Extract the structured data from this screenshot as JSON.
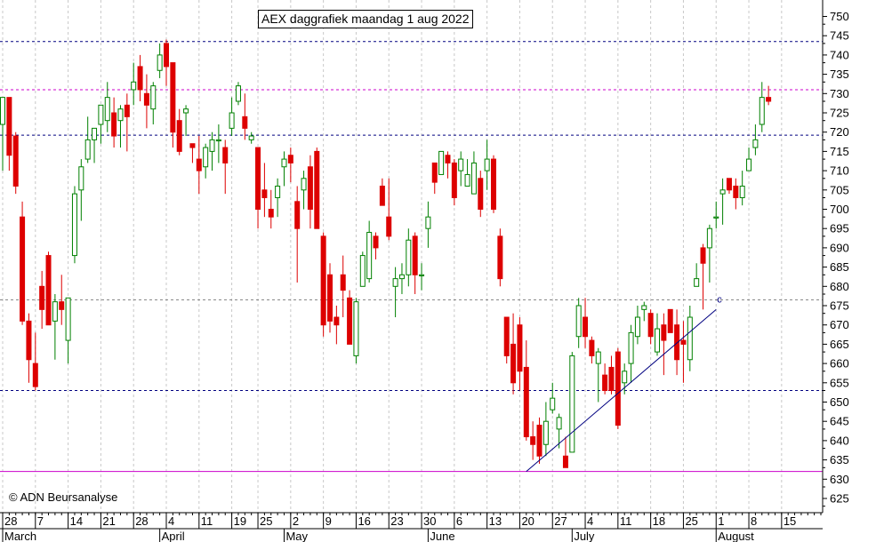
{
  "chart_data": {
    "type": "candlestick",
    "title": "AEX daggrafiek maandag 1 aug 2022",
    "copyright": "© ADN Beursanalyse",
    "y_ticks": [
      625,
      630,
      635,
      640,
      645,
      650,
      655,
      660,
      665,
      670,
      675,
      680,
      685,
      690,
      695,
      700,
      705,
      710,
      715,
      720,
      725,
      730,
      735,
      740,
      745,
      750
    ],
    "ylim": [
      621,
      754
    ],
    "day_ticks": [
      {
        "label": "28",
        "day": 0
      },
      {
        "label": "7",
        "day": 5
      },
      {
        "label": "14",
        "day": 10
      },
      {
        "label": "21",
        "day": 15
      },
      {
        "label": "28",
        "day": 20
      },
      {
        "label": "4",
        "day": 25
      },
      {
        "label": "11",
        "day": 30
      },
      {
        "label": "19",
        "day": 35
      },
      {
        "label": "25",
        "day": 39
      },
      {
        "label": "2",
        "day": 44
      },
      {
        "label": "9",
        "day": 49
      },
      {
        "label": "16",
        "day": 54
      },
      {
        "label": "23",
        "day": 59
      },
      {
        "label": "30",
        "day": 64
      },
      {
        "label": "6",
        "day": 69
      },
      {
        "label": "13",
        "day": 74
      },
      {
        "label": "20",
        "day": 79
      },
      {
        "label": "27",
        "day": 84
      },
      {
        "label": "4",
        "day": 89
      },
      {
        "label": "11",
        "day": 94
      },
      {
        "label": "18",
        "day": 99
      },
      {
        "label": "25",
        "day": 104
      },
      {
        "label": "1",
        "day": 109
      },
      {
        "label": "8",
        "day": 114
      },
      {
        "label": "15",
        "day": 119
      }
    ],
    "months": [
      {
        "label": "March",
        "day": 0
      },
      {
        "label": "April",
        "day": 24
      },
      {
        "label": "May",
        "day": 43
      },
      {
        "label": "June",
        "day": 65
      },
      {
        "label": "July",
        "day": 87
      },
      {
        "label": "August",
        "day": 109
      }
    ],
    "candles": [
      [
        722,
        729,
        710,
        729
      ],
      [
        729,
        714,
        721,
        710
      ],
      [
        719,
        706,
        720,
        704
      ],
      [
        698,
        671,
        702,
        670
      ],
      [
        671,
        661,
        673,
        655
      ],
      [
        660,
        654,
        668,
        653
      ],
      [
        680,
        674,
        684,
        669
      ],
      [
        688,
        670,
        689,
        670
      ],
      [
        671,
        676,
        678,
        661
      ],
      [
        676,
        674,
        683,
        670
      ],
      [
        666,
        677,
        677,
        660
      ],
      [
        688,
        704,
        706,
        686
      ],
      [
        705,
        711,
        713,
        697
      ],
      [
        713,
        718,
        724,
        712
      ],
      [
        718,
        721,
        721,
        712
      ],
      [
        722,
        727,
        727,
        717
      ],
      [
        723,
        729,
        733,
        720
      ],
      [
        725,
        719,
        729,
        716
      ],
      [
        723,
        726,
        727,
        716
      ],
      [
        727,
        724,
        730,
        715
      ],
      [
        731,
        733,
        738,
        727
      ],
      [
        737,
        731,
        740,
        728
      ],
      [
        730,
        727,
        735,
        721
      ],
      [
        726,
        732,
        733,
        722
      ],
      [
        736,
        740,
        743,
        734
      ],
      [
        743,
        737,
        744,
        732
      ],
      [
        738,
        720,
        738,
        716
      ],
      [
        723,
        715,
        726,
        714
      ],
      [
        725,
        726,
        727,
        719
      ],
      [
        717,
        716,
        717,
        712
      ],
      [
        713,
        710,
        719,
        704
      ],
      [
        711,
        716,
        717,
        708
      ],
      [
        715,
        718,
        720,
        710
      ],
      [
        718,
        718,
        722,
        712
      ],
      [
        716,
        712,
        718,
        704
      ],
      [
        721,
        725,
        729,
        719
      ],
      [
        728,
        732,
        733,
        727
      ],
      [
        724,
        721,
        730,
        718
      ],
      [
        718,
        719,
        720,
        717
      ],
      [
        716,
        700,
        716,
        695
      ],
      [
        705,
        703,
        712,
        698
      ],
      [
        700,
        698,
        705,
        695
      ],
      [
        703,
        706,
        708,
        698
      ],
      [
        711,
        713,
        715,
        706
      ],
      [
        714,
        712,
        716,
        707
      ],
      [
        702,
        695,
        706,
        681
      ],
      [
        705,
        708,
        710,
        700
      ],
      [
        711,
        700,
        714,
        695
      ],
      [
        715,
        695,
        716,
        695
      ],
      [
        693,
        670,
        694,
        667
      ],
      [
        683,
        671,
        686,
        668
      ],
      [
        672,
        670,
        675,
        665
      ],
      [
        683,
        679,
        688,
        672
      ],
      [
        677,
        665,
        679,
        665
      ],
      [
        662,
        676,
        677,
        660
      ],
      [
        680,
        688,
        689,
        683
      ],
      [
        682,
        694,
        697,
        681
      ],
      [
        693,
        690,
        694,
        687
      ],
      [
        706,
        701,
        708,
        703
      ],
      [
        698,
        693,
        708,
        692
      ],
      [
        680,
        682,
        685,
        672
      ],
      [
        682,
        683,
        686,
        678
      ],
      [
        683,
        692,
        695,
        680
      ],
      [
        693,
        683,
        694,
        678
      ],
      [
        683,
        683,
        686,
        679
      ],
      [
        695,
        698,
        702,
        690
      ],
      [
        712,
        707,
        711,
        704
      ],
      [
        709,
        715,
        715,
        713
      ],
      [
        714,
        712,
        715,
        708
      ],
      [
        712,
        703,
        713,
        701
      ],
      [
        710,
        713,
        715,
        706
      ],
      [
        706,
        709,
        713,
        706
      ],
      [
        704,
        712,
        715,
        705
      ],
      [
        708,
        700,
        710,
        698
      ],
      [
        710,
        713,
        718,
        705
      ],
      [
        713,
        700,
        714,
        699
      ],
      [
        693,
        682,
        695,
        680
      ],
      [
        672,
        662,
        672,
        660
      ],
      [
        665,
        655,
        673,
        652
      ],
      [
        670,
        658,
        672,
        653
      ],
      [
        659,
        641,
        666,
        640
      ],
      [
        641,
        639,
        645,
        635
      ],
      [
        644,
        636,
        646,
        634
      ],
      [
        639,
        645,
        650,
        636
      ],
      [
        648,
        651,
        655,
        647
      ],
      [
        643,
        646,
        647,
        638
      ],
      [
        636,
        633,
        641,
        633
      ],
      [
        637,
        662,
        663,
        637
      ],
      [
        667,
        675,
        677,
        664
      ],
      [
        672,
        667,
        677,
        664
      ],
      [
        666,
        662,
        667,
        660
      ],
      [
        660,
        663,
        664,
        650
      ],
      [
        657,
        653,
        660,
        652
      ],
      [
        659,
        653,
        662,
        652
      ],
      [
        663,
        644,
        664,
        643
      ],
      [
        655,
        658,
        660,
        652
      ],
      [
        660,
        668,
        670,
        655
      ],
      [
        667,
        672,
        675,
        665
      ],
      [
        674,
        675,
        676,
        671
      ],
      [
        673,
        667,
        674,
        665
      ],
      [
        663,
        669,
        673,
        662
      ],
      [
        670,
        666,
        673,
        657
      ],
      [
        674,
        668,
        674,
        668
      ],
      [
        670,
        661,
        674,
        657
      ],
      [
        666,
        665,
        671,
        655
      ],
      [
        661,
        672,
        675,
        658
      ],
      [
        680,
        682,
        686,
        680
      ],
      [
        690,
        686,
        691,
        674
      ],
      [
        690,
        695,
        696,
        681
      ],
      [
        698,
        698,
        702,
        695
      ],
      [
        704,
        705,
        708,
        696
      ],
      [
        708,
        705,
        708,
        704
      ],
      [
        706,
        703,
        708,
        700
      ],
      [
        703,
        706,
        710,
        701
      ],
      [
        710,
        713,
        716,
        710
      ],
      [
        716,
        718,
        722,
        714
      ],
      [
        722,
        729,
        733,
        720
      ],
      [
        729,
        728,
        732,
        727
      ]
    ],
    "h_levels": [
      {
        "value": 743.5,
        "color": "#000080",
        "style": "dotted"
      },
      {
        "value": 731,
        "color": "#cc00cc",
        "style": "dotted"
      },
      {
        "value": 719.2,
        "color": "#000080",
        "style": "dotted"
      },
      {
        "value": 676.5,
        "color": "#888888",
        "style": "dotted"
      },
      {
        "value": 653,
        "color": "#000080",
        "style": "dotted"
      },
      {
        "value": 632,
        "color": "#cc00cc",
        "style": "solid"
      }
    ],
    "trendline": {
      "from": [
        80,
        632
      ],
      "to": [
        109,
        674
      ],
      "color": "#000080"
    },
    "trend_label": "c",
    "colors": {
      "up": "#008000",
      "down": "#dd0000",
      "grid": "#c8c8c8",
      "axis": "#000000"
    }
  }
}
